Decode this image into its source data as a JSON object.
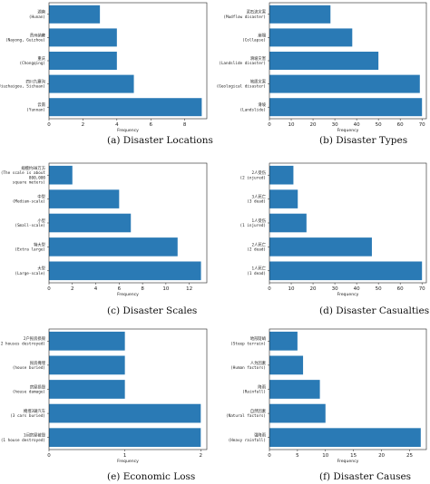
{
  "chart_data": [
    {
      "type": "bar",
      "orientation": "horizontal",
      "caption": "(a)  Disaster Locations",
      "xlabel": "Frequency",
      "categories": [
        [
          "湖南",
          "(Hunan)"
        ],
        [
          "贵州纳雍",
          "(Nayong, Guizhou)"
        ],
        [
          "重庆",
          "(Chongqing)"
        ],
        [
          "四川九寨沟",
          "(Jiuzhaigou, Sichuan)"
        ],
        [
          "云南",
          "(Yunnan)"
        ]
      ],
      "values": [
        3,
        4,
        4,
        5,
        9
      ],
      "xlim": [
        0,
        9.3
      ],
      "xticks": [
        0,
        2,
        4,
        6,
        8
      ],
      "color": "#2a7ab5"
    },
    {
      "type": "bar",
      "orientation": "horizontal",
      "caption": "(b)  Disaster Types",
      "xlabel": "Frequency",
      "categories": [
        [
          "泥石流灾害",
          "(Mudflow disaster)"
        ],
        [
          "崩塌",
          "(Collapse)"
        ],
        [
          "滑坡灾害",
          "(Landslide disaster)"
        ],
        [
          "地质灾害",
          "(Geological disaster)"
        ],
        [
          "滑坡",
          "(Landslide)"
        ]
      ],
      "values": [
        28,
        38,
        50,
        69,
        70
      ],
      "xlim": [
        0,
        72
      ],
      "xticks": [
        0,
        10,
        20,
        30,
        40,
        50,
        60,
        70
      ],
      "color": "#2a7ab5"
    },
    {
      "type": "bar",
      "orientation": "horizontal",
      "caption": "(c)  Disaster Scales",
      "xlabel": "Frequency",
      "categories": [
        [
          "规模约80万方",
          "(The scale is about",
          "800,000",
          "square meters)"
        ],
        [
          "中型",
          "(Medium-scale)"
        ],
        [
          "小型",
          "(Small-scale)"
        ],
        [
          "特大型",
          "(Extra large)"
        ],
        [
          "大型",
          "(Large-scale)"
        ]
      ],
      "values": [
        2,
        6,
        7,
        11,
        13
      ],
      "xlim": [
        0,
        13.5
      ],
      "xticks": [
        0,
        2,
        4,
        6,
        8,
        10,
        12
      ],
      "color": "#2a7ab5"
    },
    {
      "type": "bar",
      "orientation": "horizontal",
      "caption": "(d)  Disaster Casualties",
      "xlabel": "Frequency",
      "categories": [
        [
          "2人受伤",
          "(2 injured)"
        ],
        [
          "3人死亡",
          "(3 dead)"
        ],
        [
          "1人受伤",
          "(1 injured)"
        ],
        [
          "2人死亡",
          "(2 dead)"
        ],
        [
          "1人死亡",
          "(1 dead)"
        ]
      ],
      "values": [
        11,
        13,
        17,
        47,
        70
      ],
      "xlim": [
        0,
        72
      ],
      "xticks": [
        0,
        10,
        20,
        30,
        40,
        50,
        60,
        70
      ],
      "color": "#2a7ab5"
    },
    {
      "type": "bar",
      "orientation": "horizontal",
      "caption": "(e)  Economic Loss",
      "xlabel": "Frequency",
      "categories": [
        [
          "2户民房损毁",
          "(2 houses destroyed)"
        ],
        [
          "民房掩埋",
          "(house buried)"
        ],
        [
          "房屋损毁",
          "(house damage)"
        ],
        [
          "掩埋3辆汽车",
          "(3 cars buried)"
        ],
        [
          "1间房屋被毁",
          "(1 house destroyed)"
        ]
      ],
      "values": [
        1,
        1,
        1,
        2,
        2
      ],
      "xlim": [
        0,
        2.08
      ],
      "xticks": [
        0,
        1,
        2
      ],
      "color": "#2a7ab5"
    },
    {
      "type": "bar",
      "orientation": "horizontal",
      "caption": "(f)  Disaster Causes",
      "xlabel": "Frequency",
      "categories": [
        [
          "地形陡峭",
          "(Steep terrain)"
        ],
        [
          "人为因素",
          "(Human factors)"
        ],
        [
          "降雨",
          "(Rainfall)"
        ],
        [
          "自然因素",
          "(Natural factors)"
        ],
        [
          "强降雨",
          "(Heavy rainfall)"
        ]
      ],
      "values": [
        5,
        6,
        9,
        10,
        27
      ],
      "xlim": [
        0,
        28
      ],
      "xticks": [
        0,
        5,
        10,
        15,
        20,
        25
      ],
      "color": "#2a7ab5"
    }
  ]
}
